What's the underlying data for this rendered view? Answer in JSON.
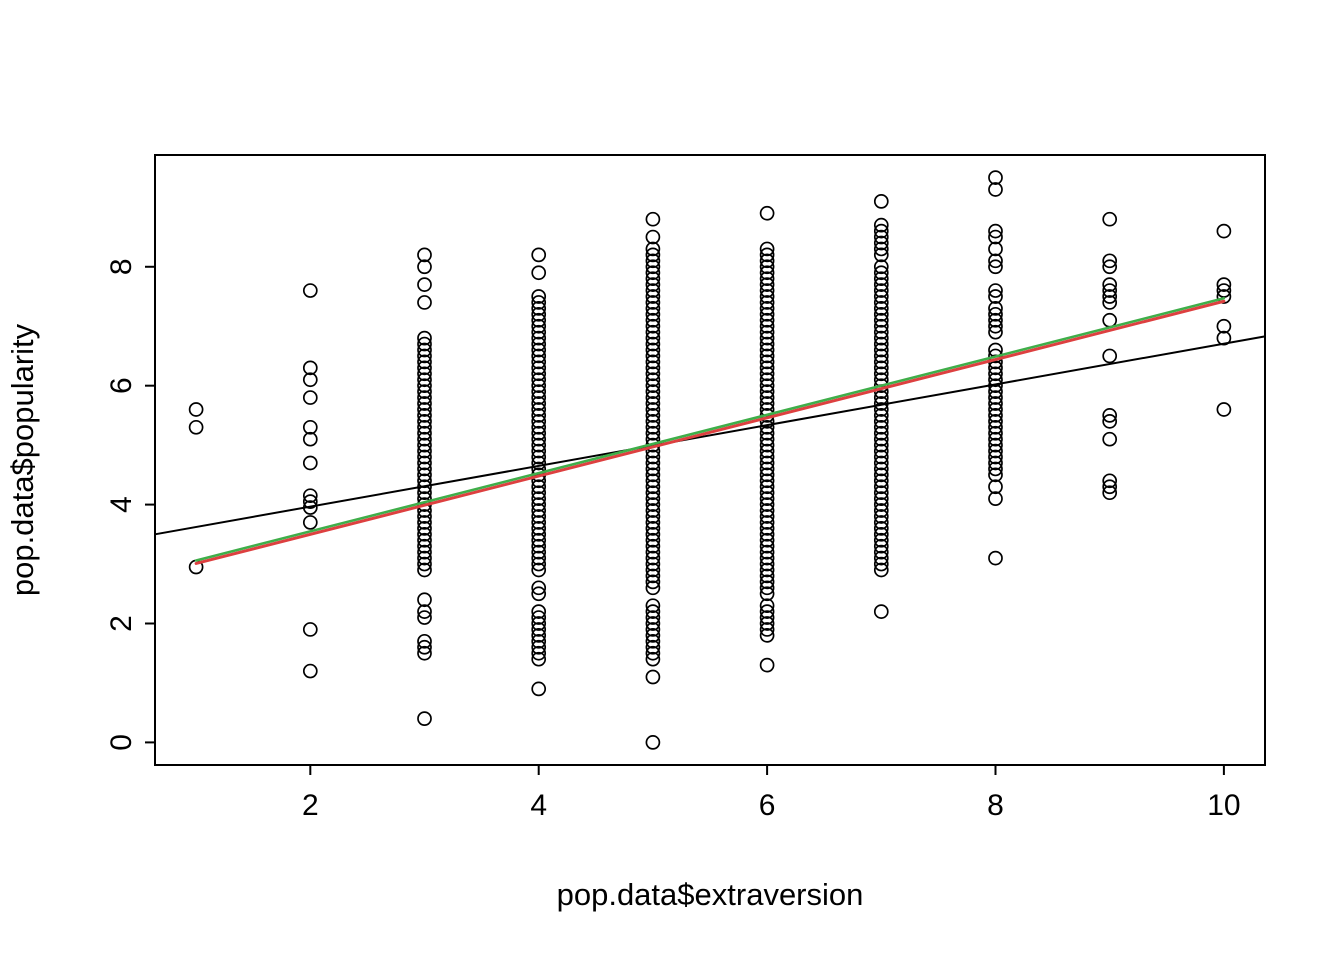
{
  "chart_data": {
    "type": "scatter",
    "title": "",
    "xlabel": "pop.data$extraversion",
    "ylabel": "pop.data$popularity",
    "xlim": [
      0.64,
      10.36
    ],
    "ylim": [
      -0.38,
      9.88
    ],
    "x_ticks": [
      2,
      4,
      6,
      8,
      10
    ],
    "y_ticks": [
      0,
      2,
      4,
      6,
      8
    ],
    "grid": "off",
    "legend": "none",
    "point_style": {
      "shape": "open-circle",
      "radius_px": 6.5,
      "stroke": "#000000"
    },
    "columns": [
      {
        "x": 1,
        "y": [
          2.95,
          5.3,
          5.6
        ]
      },
      {
        "x": 2,
        "y": [
          1.2,
          1.9,
          3.7,
          3.95,
          4.05,
          4.15,
          4.7,
          5.1,
          5.3,
          5.8,
          6.1,
          6.3,
          7.6
        ]
      },
      {
        "x": 3,
        "y": [
          0.4,
          1.5,
          1.6,
          1.7,
          2.1,
          2.2,
          2.4,
          2.9,
          3.0,
          3.1,
          3.2,
          3.3,
          3.4,
          3.5,
          3.6,
          3.7,
          3.8,
          3.9,
          4.0,
          4.1,
          4.2,
          4.3,
          4.4,
          4.5,
          4.6,
          4.7,
          4.8,
          4.9,
          5.0,
          5.1,
          5.2,
          5.3,
          5.4,
          5.5,
          5.6,
          5.7,
          5.8,
          5.9,
          6.0,
          6.1,
          6.2,
          6.3,
          6.4,
          6.5,
          6.6,
          6.7,
          6.8,
          7.4,
          7.7,
          8.0,
          8.2
        ]
      },
      {
        "x": 4,
        "y": [
          0.9,
          1.4,
          1.5,
          1.6,
          1.7,
          1.8,
          1.9,
          2.0,
          2.1,
          2.2,
          2.5,
          2.6,
          2.9,
          3.0,
          3.1,
          3.2,
          3.3,
          3.4,
          3.5,
          3.6,
          3.7,
          3.8,
          3.9,
          4.0,
          4.1,
          4.2,
          4.3,
          4.4,
          4.5,
          4.6,
          4.7,
          4.8,
          4.9,
          5.0,
          5.1,
          5.2,
          5.3,
          5.4,
          5.5,
          5.6,
          5.7,
          5.8,
          5.9,
          6.0,
          6.1,
          6.2,
          6.3,
          6.4,
          6.5,
          6.6,
          6.7,
          6.8,
          6.9,
          7.0,
          7.1,
          7.2,
          7.3,
          7.4,
          7.5,
          7.9,
          8.2
        ]
      },
      {
        "x": 5,
        "y": [
          0.0,
          1.1,
          1.4,
          1.5,
          1.6,
          1.7,
          1.8,
          1.9,
          2.0,
          2.1,
          2.2,
          2.3,
          2.6,
          2.7,
          2.8,
          2.9,
          3.0,
          3.1,
          3.2,
          3.3,
          3.4,
          3.5,
          3.6,
          3.7,
          3.8,
          3.9,
          4.0,
          4.1,
          4.2,
          4.3,
          4.4,
          4.5,
          4.6,
          4.7,
          4.8,
          4.9,
          5.0,
          5.1,
          5.2,
          5.3,
          5.4,
          5.5,
          5.6,
          5.7,
          5.8,
          5.9,
          6.0,
          6.1,
          6.2,
          6.3,
          6.4,
          6.5,
          6.6,
          6.7,
          6.8,
          6.9,
          7.0,
          7.1,
          7.2,
          7.3,
          7.4,
          7.5,
          7.6,
          7.7,
          7.8,
          7.9,
          8.0,
          8.1,
          8.2,
          8.3,
          8.5,
          8.8
        ]
      },
      {
        "x": 6,
        "y": [
          1.3,
          1.8,
          1.9,
          2.0,
          2.1,
          2.2,
          2.3,
          2.5,
          2.6,
          2.7,
          2.8,
          2.9,
          3.0,
          3.1,
          3.2,
          3.3,
          3.4,
          3.5,
          3.6,
          3.7,
          3.8,
          3.9,
          4.0,
          4.1,
          4.2,
          4.3,
          4.4,
          4.5,
          4.6,
          4.7,
          4.8,
          4.9,
          5.0,
          5.1,
          5.2,
          5.3,
          5.4,
          5.5,
          5.6,
          5.7,
          5.8,
          5.9,
          6.0,
          6.1,
          6.2,
          6.3,
          6.4,
          6.5,
          6.6,
          6.7,
          6.8,
          6.9,
          7.0,
          7.1,
          7.2,
          7.3,
          7.4,
          7.5,
          7.6,
          7.7,
          7.8,
          7.9,
          8.0,
          8.1,
          8.2,
          8.3,
          8.9
        ]
      },
      {
        "x": 7,
        "y": [
          2.2,
          2.9,
          3.0,
          3.1,
          3.2,
          3.3,
          3.4,
          3.5,
          3.6,
          3.7,
          3.8,
          3.9,
          4.0,
          4.1,
          4.2,
          4.3,
          4.4,
          4.5,
          4.6,
          4.7,
          4.8,
          4.9,
          5.0,
          5.1,
          5.2,
          5.3,
          5.4,
          5.5,
          5.6,
          5.7,
          5.8,
          5.9,
          6.0,
          6.1,
          6.2,
          6.3,
          6.4,
          6.5,
          6.6,
          6.7,
          6.8,
          6.9,
          7.0,
          7.1,
          7.2,
          7.3,
          7.4,
          7.5,
          7.6,
          7.7,
          7.8,
          7.9,
          8.0,
          8.2,
          8.3,
          8.4,
          8.5,
          8.6,
          8.7,
          9.1
        ]
      },
      {
        "x": 8,
        "y": [
          3.1,
          4.1,
          4.3,
          4.5,
          4.6,
          4.7,
          4.8,
          4.9,
          5.0,
          5.1,
          5.2,
          5.3,
          5.4,
          5.5,
          5.6,
          5.7,
          5.8,
          5.9,
          6.0,
          6.1,
          6.2,
          6.3,
          6.4,
          6.5,
          6.6,
          6.9,
          7.0,
          7.1,
          7.2,
          7.3,
          7.5,
          7.6,
          8.0,
          8.1,
          8.3,
          8.5,
          8.6,
          9.3,
          9.5
        ]
      },
      {
        "x": 9,
        "y": [
          4.2,
          4.3,
          4.4,
          5.1,
          5.4,
          5.5,
          6.5,
          7.1,
          7.4,
          7.5,
          7.6,
          7.7,
          8.0,
          8.1,
          8.8
        ]
      },
      {
        "x": 10,
        "y": [
          5.6,
          6.8,
          7.0,
          7.5,
          7.6,
          7.7,
          8.6
        ]
      }
    ],
    "lines": [
      {
        "name": "regression-line-black",
        "color": "#000000",
        "width": 2,
        "x1": 0.64,
        "y1": 3.5,
        "x2": 10.36,
        "y2": 6.83
      },
      {
        "name": "fitted-line-red",
        "color": "#dd4040",
        "width": 3,
        "x1": 1.0,
        "y1": 3.01,
        "x2": 10.0,
        "y2": 7.42
      },
      {
        "name": "fitted-line-green",
        "color": "#3fae49",
        "width": 2.6,
        "x1": 1.0,
        "y1": 3.06,
        "x2": 10.0,
        "y2": 7.47
      }
    ]
  }
}
